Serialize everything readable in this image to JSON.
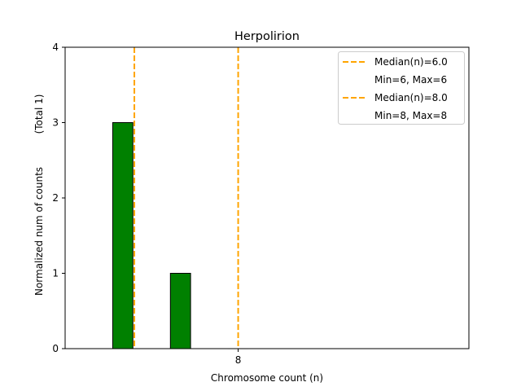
{
  "chart_data": {
    "type": "bar",
    "title": "Herpolirion",
    "xlabel": "Chromosome count (n)",
    "ylabel": "Normalized num of counts",
    "ylabel_note": "(Total 1)",
    "xlim": [
      5,
      12
    ],
    "ylim": [
      0,
      4
    ],
    "x_ticks": [
      8
    ],
    "y_ticks": [
      0,
      1,
      2,
      3,
      4
    ],
    "bar_width": 0.35,
    "x": [
      5.25,
      6,
      7,
      8
    ],
    "values": [
      0,
      3,
      1,
      0
    ],
    "bar_color": "#008000",
    "bar_edge_color": "#000000",
    "median_lines": [
      {
        "x": 6.2,
        "label": "Median(n)=6.0",
        "range_label": "Min=6, Max=6",
        "color": "#ffa500"
      },
      {
        "x": 8.0,
        "label": "Median(n)=8.0",
        "range_label": "Min=8, Max=8",
        "color": "#ffa500"
      }
    ],
    "grid": false,
    "legend_position": "top-right"
  }
}
